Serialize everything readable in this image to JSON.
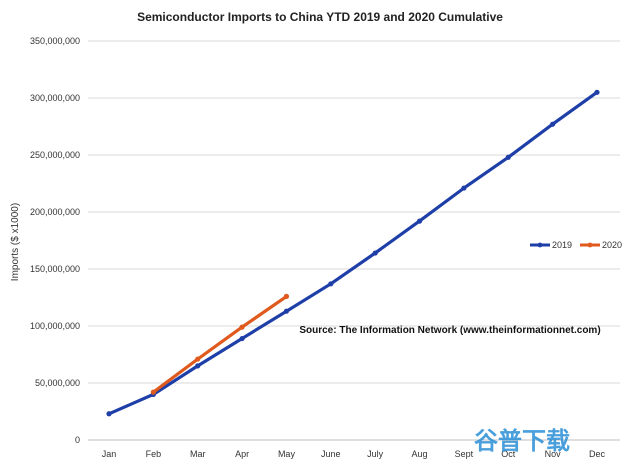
{
  "chart_data": {
    "type": "line",
    "title": "Semiconductor Imports to China YTD 2019 and 2020 Cumulative",
    "xlabel": "",
    "ylabel": "Imports ($ x1000)",
    "categories": [
      "Jan",
      "Feb",
      "Mar",
      "Apr",
      "May",
      "June",
      "July",
      "Aug",
      "Sept",
      "Oct",
      "Nov",
      "Dec"
    ],
    "ylim": [
      0,
      350000000
    ],
    "yticks": [
      0,
      50000000,
      100000000,
      150000000,
      200000000,
      250000000,
      300000000,
      350000000
    ],
    "ytick_labels": [
      "0",
      "50,000,000",
      "100,000,000",
      "150,000,000",
      "200,000,000",
      "250,000,000",
      "300,000,000",
      "350,000,000"
    ],
    "grid": "horizontal",
    "legend_position": "right",
    "series": [
      {
        "name": "2019",
        "color": "#1f3fa8",
        "values": [
          23000000,
          40000000,
          65000000,
          89000000,
          113000000,
          137000000,
          164000000,
          192000000,
          221000000,
          248000000,
          277000000,
          305000000
        ]
      },
      {
        "name": "2020",
        "color": "#e05a1e",
        "values": [
          null,
          42000000,
          71000000,
          99000000,
          126000000,
          null,
          null,
          null,
          null,
          null,
          null,
          null
        ]
      }
    ],
    "annotation": "Source: The Information Network (www.theinformationnet.com)"
  },
  "watermark": "谷普下载"
}
